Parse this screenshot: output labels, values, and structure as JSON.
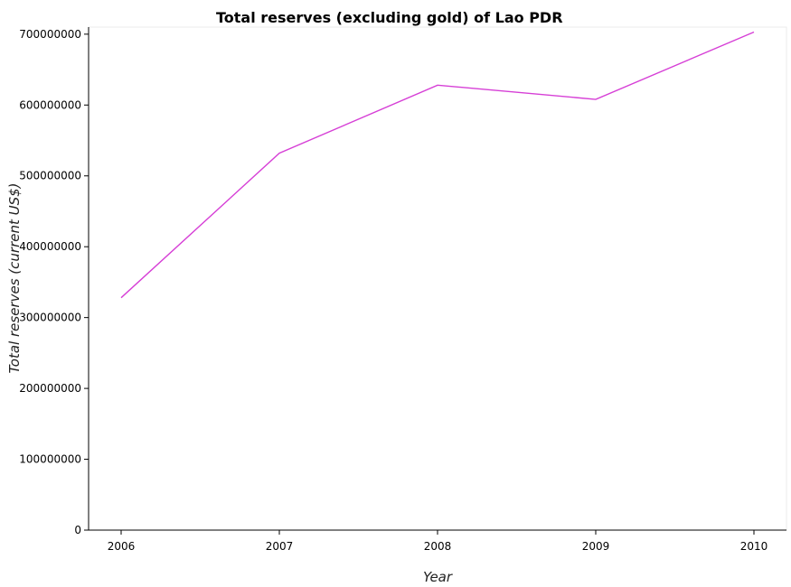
{
  "chart_data": {
    "type": "line",
    "title": "Total reserves (excluding gold) of Lao PDR",
    "xlabel": "Year",
    "ylabel": "Total reserves (current US$)",
    "categories": [
      "2006",
      "2007",
      "2008",
      "2009",
      "2010"
    ],
    "series": [
      {
        "name": "",
        "values": [
          328000000,
          532000000,
          628000000,
          608000000,
          703000000
        ],
        "color": "#d63fd6"
      }
    ],
    "ylim": [
      0,
      710000000
    ],
    "yticks": [
      0,
      100000000,
      200000000,
      300000000,
      400000000,
      500000000,
      600000000,
      700000000
    ],
    "ytick_labels": [
      "0",
      "100000000",
      "200000000",
      "300000000",
      "400000000",
      "500000000",
      "600000000",
      "700000000"
    ],
    "grid": false,
    "legend": "none"
  }
}
